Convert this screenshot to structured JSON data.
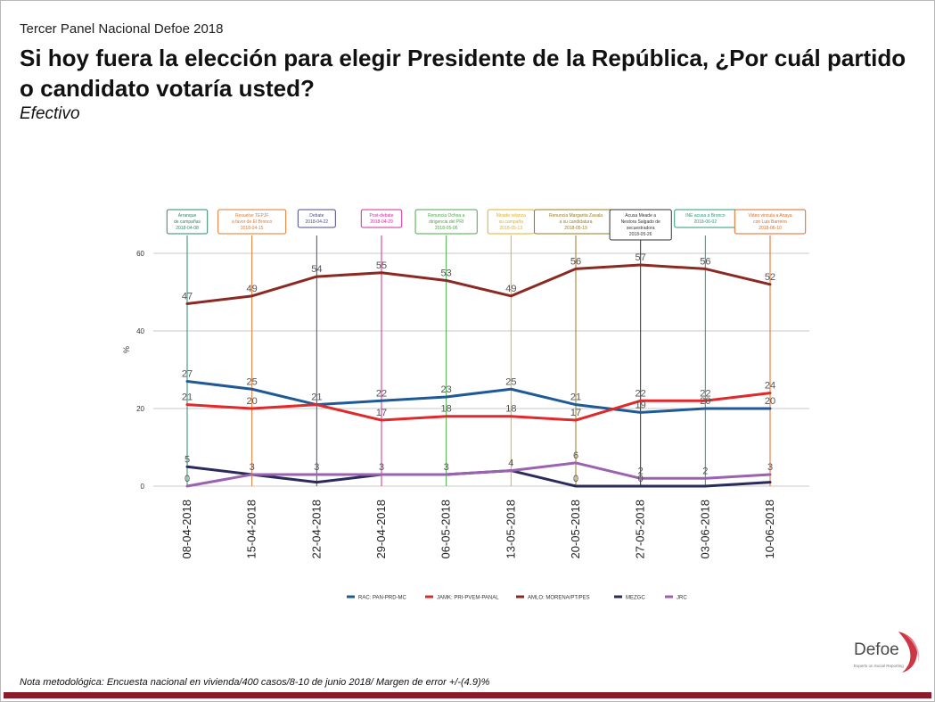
{
  "header": {
    "kicker": "Tercer Panel Nacional Defoe 2018",
    "title": "Si hoy fuera la elección para elegir Presidente de la República, ¿Por cuál partido o candidato votaría usted?",
    "subtitle": "Efectivo"
  },
  "footer": {
    "note": "Nota metodológica: Encuesta nacional en vivienda/400 casos/8-10 de junio 2018/ Margen de error +/-(4.9)%"
  },
  "logo": {
    "name": "Defoe",
    "tagline": "Experts on Social Reporting"
  },
  "colors": {
    "accent_bar": "#8b1a2b",
    "gridline": "#c8c8c8"
  },
  "chart_data": {
    "type": "line",
    "categories": [
      "08-04-2018",
      "15-04-2018",
      "22-04-2018",
      "29-04-2018",
      "06-05-2018",
      "13-05-2018",
      "20-05-2018",
      "27-05-2018",
      "03-06-2018",
      "10-06-2018"
    ],
    "ylabel": "%",
    "ylim": [
      0,
      60
    ],
    "yticks": [
      0,
      20,
      40,
      60
    ],
    "grid": true,
    "legend_position": "bottom",
    "series": [
      {
        "name": "RAC: PAN-PRD-MC",
        "color": "#1f5a96",
        "values": [
          27,
          25,
          21,
          22,
          23,
          25,
          21,
          19,
          20,
          20
        ]
      },
      {
        "name": "JAMK: PRI-PVEM-PANAL",
        "color": "#e0292b",
        "values": [
          21,
          20,
          21,
          17,
          18,
          18,
          17,
          22,
          22,
          24
        ]
      },
      {
        "name": "AMLO: MORENA/PT/PES",
        "color": "#8b2a22",
        "values": [
          47,
          49,
          54,
          55,
          53,
          49,
          56,
          57,
          56,
          52
        ]
      },
      {
        "name": "MEZGC",
        "color": "#2a2a5c",
        "values": [
          5,
          3,
          1,
          3,
          3,
          4,
          0,
          0,
          0,
          1
        ]
      },
      {
        "name": "JRC",
        "color": "#9b62b0",
        "values": [
          0,
          3,
          3,
          3,
          3,
          4,
          6,
          2,
          2,
          3
        ]
      }
    ],
    "data_labels": [
      {
        "series": 0,
        "values": [
          27,
          25,
          21,
          22,
          23,
          25,
          21,
          19,
          20,
          20
        ]
      },
      {
        "series": 1,
        "values": [
          21,
          20,
          null,
          17,
          18,
          18,
          17,
          22,
          22,
          24
        ]
      },
      {
        "series": 2,
        "values": [
          47,
          49,
          54,
          55,
          53,
          49,
          56,
          57,
          56,
          52
        ]
      },
      {
        "series": 3,
        "values": [
          5,
          3,
          null,
          3,
          3,
          4,
          0,
          0,
          null,
          null
        ]
      },
      {
        "series": 4,
        "values": [
          0,
          null,
          3,
          null,
          null,
          null,
          6,
          2,
          2,
          3
        ]
      }
    ],
    "events": [
      {
        "lines": [
          "Arranque",
          "de campañas",
          "2018-04-08"
        ],
        "color": "#2a8a6a"
      },
      {
        "lines": [
          "Resuelve TEPJF",
          "a favor de El Bronco",
          "2018-04-15"
        ],
        "color": "#e0782b"
      },
      {
        "lines": [
          "Debate",
          "2018-04-22"
        ],
        "color": "#4a4a8a"
      },
      {
        "lines": [
          "Post-debate",
          "2018-04-29"
        ],
        "color": "#d42a9a"
      },
      {
        "lines": [
          "Renuncia Ochoa a",
          "dirigencia del PRI",
          "2018-05-06"
        ],
        "color": "#4aa84a"
      },
      {
        "lines": [
          "Meade relanza",
          "su campaña",
          "2018-05-13"
        ],
        "color": "#e0b020"
      },
      {
        "lines": [
          "Renuncia Margarita Zavala",
          "a su candidatura",
          "2018-05-19"
        ],
        "color": "#9a7a20"
      },
      {
        "lines": [
          "Acusa Meade a",
          "Nestora Salgado de",
          "secuestradora",
          "2018-05-26"
        ],
        "color": "#333333"
      },
      {
        "lines": [
          "INE acusa a Bronco",
          "2018-06-02"
        ],
        "color": "#2a9a7a"
      },
      {
        "lines": [
          "Video vincula a Anaya",
          "con Luis Barreiro",
          "2018-06-10"
        ],
        "color": "#e06a20"
      }
    ]
  }
}
